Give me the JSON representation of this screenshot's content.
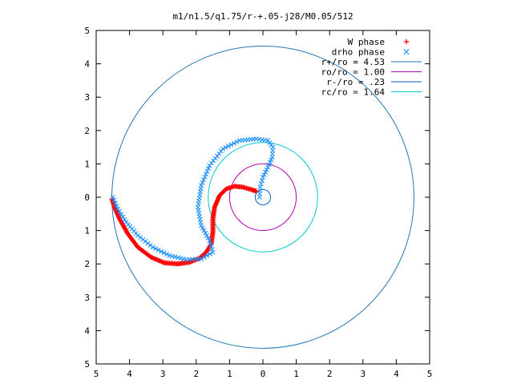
{
  "chart_data": {
    "type": "scatter",
    "title": "m1/n1.5/q1.75/r-+.05-j28/M0.05/512",
    "xlabel": "",
    "ylabel": "",
    "xlim": [
      -5,
      5
    ],
    "ylim": [
      -5,
      5
    ],
    "grid": false,
    "legend_position": "top-right",
    "x_tick_labels": [
      "5",
      "4",
      "3",
      "2",
      "1",
      "0",
      "1",
      "2",
      "3",
      "4",
      "5"
    ],
    "y_tick_labels": [
      "5",
      "4",
      "3",
      "2",
      "1",
      "0",
      "1",
      "2",
      "3",
      "4",
      "5"
    ],
    "series": [
      {
        "name": "W phase",
        "kind": "points",
        "marker": "plus",
        "color": "#ff0000",
        "anchors": [
          [
            -4.53,
            -0.05
          ],
          [
            -4.45,
            -0.3
          ],
          [
            -4.3,
            -0.65
          ],
          [
            -4.05,
            -1.1
          ],
          [
            -3.75,
            -1.5
          ],
          [
            -3.35,
            -1.8
          ],
          [
            -2.95,
            -1.97
          ],
          [
            -2.55,
            -2.0
          ],
          [
            -2.2,
            -1.95
          ],
          [
            -1.9,
            -1.83
          ],
          [
            -1.7,
            -1.65
          ],
          [
            -1.55,
            -1.4
          ],
          [
            -1.5,
            -1.05
          ],
          [
            -1.5,
            -0.65
          ],
          [
            -1.45,
            -0.3
          ],
          [
            -1.3,
            0.05
          ],
          [
            -1.1,
            0.25
          ],
          [
            -0.85,
            0.33
          ],
          [
            -0.6,
            0.3
          ],
          [
            -0.35,
            0.23
          ],
          [
            -0.2,
            0.18
          ]
        ]
      },
      {
        "name": "drho phase",
        "kind": "points",
        "marker": "cross",
        "color": "#1e90ff",
        "anchors": [
          [
            -4.5,
            0.0
          ],
          [
            -4.35,
            -0.35
          ],
          [
            -4.1,
            -0.75
          ],
          [
            -3.75,
            -1.15
          ],
          [
            -3.3,
            -1.5
          ],
          [
            -2.8,
            -1.75
          ],
          [
            -2.3,
            -1.87
          ],
          [
            -1.85,
            -1.85
          ],
          [
            -1.5,
            -1.65
          ],
          [
            -1.6,
            -1.3
          ],
          [
            -1.85,
            -0.85
          ],
          [
            -1.95,
            -0.3
          ],
          [
            -1.85,
            0.35
          ],
          [
            -1.6,
            0.95
          ],
          [
            -1.2,
            1.45
          ],
          [
            -0.7,
            1.7
          ],
          [
            -0.2,
            1.75
          ],
          [
            0.15,
            1.7
          ],
          [
            0.3,
            1.5
          ],
          [
            0.28,
            1.2
          ],
          [
            0.15,
            0.9
          ],
          [
            0.0,
            0.6
          ],
          [
            -0.08,
            0.3
          ],
          [
            -0.1,
            0.0
          ]
        ]
      },
      {
        "name": "r+/ro = 4.53",
        "kind": "circle",
        "radius": 4.53,
        "color": "#1f77b4"
      },
      {
        "name": "ro/ro = 1.00",
        "kind": "circle",
        "radius": 1.0,
        "color": "#b000b0"
      },
      {
        "name": "r-/ro = .23",
        "kind": "circle",
        "radius": 0.23,
        "color": "#0066cc"
      },
      {
        "name": "rc/ro = 1.64",
        "kind": "circle",
        "radius": 1.64,
        "color": "#00c8c8"
      }
    ]
  }
}
